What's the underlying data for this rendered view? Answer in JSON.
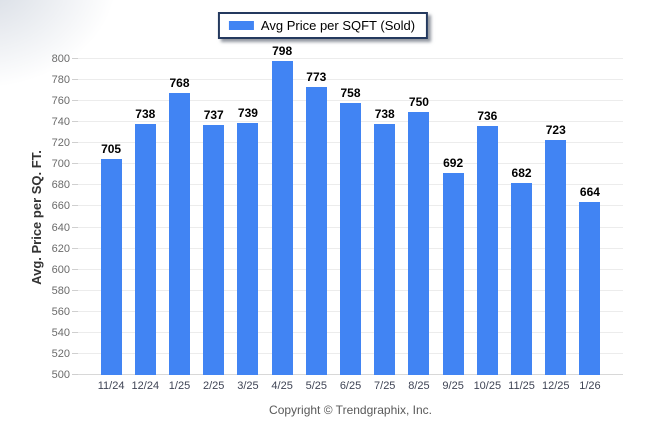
{
  "legend": {
    "label": "Avg Price per SQFT (Sold)"
  },
  "chart_data": {
    "type": "bar",
    "title": "",
    "categories": [
      "11/24",
      "12/24",
      "1/25",
      "2/25",
      "3/25",
      "4/25",
      "5/25",
      "6/25",
      "7/25",
      "8/25",
      "9/25",
      "10/25",
      "11/25",
      "12/25",
      "1/26"
    ],
    "series": [
      {
        "name": "Avg Price per SQFT (Sold)",
        "values": [
          705,
          738,
          768,
          737,
          739,
          798,
          773,
          758,
          738,
          750,
          692,
          736,
          682,
          723,
          664
        ]
      }
    ],
    "xlabel": "",
    "ylabel": "Avg. Price per SQ. FT.",
    "ylim": [
      500,
      800
    ],
    "ytick_step": 20,
    "grid": true,
    "legend_position": "top",
    "bar_color": "#4184f3"
  },
  "footer": {
    "copyright": "Copyright © Trendgraphix, Inc."
  },
  "colors": {
    "bar": "#4184f3",
    "legend_border": "#24395e",
    "gridline": "#ececec",
    "value_label": "#000000",
    "axis_label": "#6b6b6b"
  }
}
